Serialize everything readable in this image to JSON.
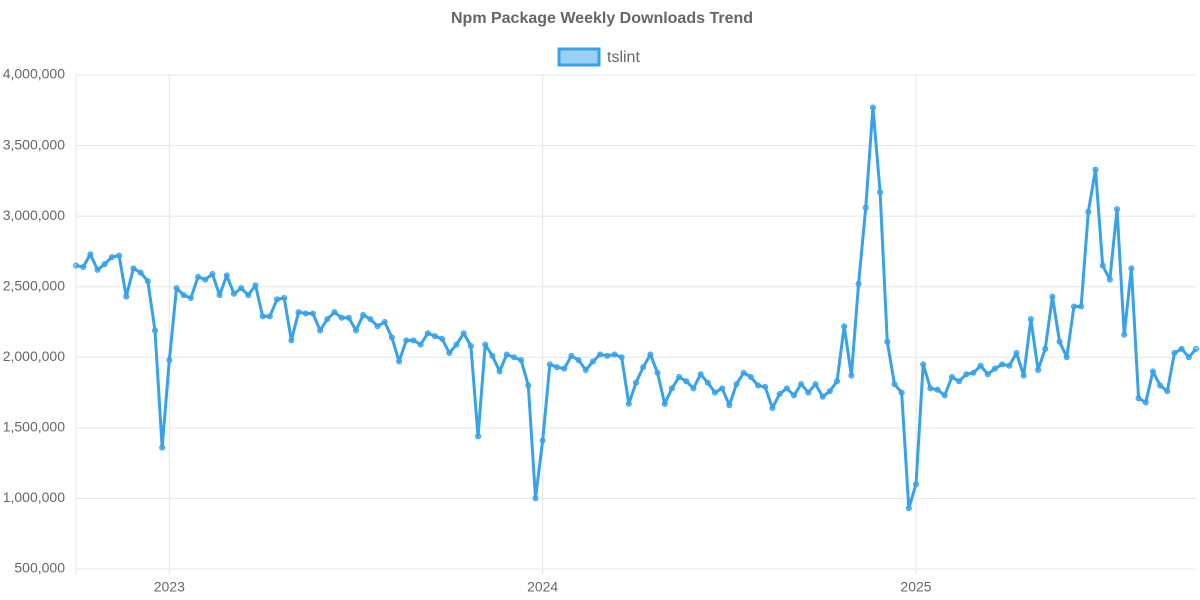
{
  "chart_data": {
    "type": "line",
    "title": "Npm Package Weekly Downloads Trend",
    "categories": [
      null,
      null,
      null,
      null,
      null,
      null,
      null,
      null,
      null,
      null,
      null,
      null,
      null,
      "2023",
      null,
      null,
      null,
      null,
      null,
      null,
      null,
      null,
      null,
      null,
      null,
      null,
      null,
      null,
      null,
      null,
      null,
      null,
      null,
      null,
      null,
      null,
      null,
      null,
      null,
      null,
      null,
      null,
      null,
      null,
      null,
      null,
      null,
      null,
      null,
      null,
      null,
      null,
      null,
      null,
      null,
      null,
      null,
      null,
      null,
      null,
      null,
      null,
      null,
      null,
      null,
      "2024",
      null,
      null,
      null,
      null,
      null,
      null,
      null,
      null,
      null,
      null,
      null,
      null,
      null,
      null,
      null,
      null,
      null,
      null,
      null,
      null,
      null,
      null,
      null,
      null,
      null,
      null,
      null,
      null,
      null,
      null,
      null,
      null,
      null,
      null,
      null,
      null,
      null,
      null,
      null,
      null,
      null,
      null,
      null,
      null,
      null,
      null,
      null,
      null,
      null,
      null,
      null,
      "2025",
      null,
      null,
      null,
      null,
      null,
      null,
      null,
      null,
      null,
      null,
      null,
      null,
      null,
      null,
      null,
      null,
      null,
      null,
      null,
      null,
      null,
      null,
      null,
      null,
      null,
      null,
      null,
      null,
      null,
      null,
      null,
      null,
      null,
      null,
      null,
      null,
      null,
      null,
      null
    ],
    "series": [
      {
        "name": "tslint",
        "color": "#36a2eb",
        "values": [
          2650000,
          2640000,
          2730000,
          2620000,
          2660000,
          2710000,
          2720000,
          2430000,
          2630000,
          2600000,
          2540000,
          2190000,
          1360000,
          1980000,
          2490000,
          2440000,
          2420000,
          2570000,
          2550000,
          2590000,
          2440000,
          2580000,
          2450000,
          2490000,
          2440000,
          2510000,
          2290000,
          2290000,
          2410000,
          2420000,
          2120000,
          2320000,
          2310000,
          2310000,
          2190000,
          2270000,
          2320000,
          2280000,
          2280000,
          2190000,
          2300000,
          2270000,
          2220000,
          2250000,
          2140000,
          1970000,
          2120000,
          2120000,
          2090000,
          2170000,
          2150000,
          2130000,
          2030000,
          2090000,
          2170000,
          2080000,
          1440000,
          2090000,
          2010000,
          1900000,
          2020000,
          2000000,
          1980000,
          1800000,
          1000000,
          1410000,
          1950000,
          1930000,
          1920000,
          2010000,
          1980000,
          1910000,
          1970000,
          2020000,
          2010000,
          2020000,
          2000000,
          1670000,
          1820000,
          1930000,
          2020000,
          1890000,
          1670000,
          1780000,
          1860000,
          1830000,
          1780000,
          1880000,
          1820000,
          1750000,
          1780000,
          1660000,
          1810000,
          1890000,
          1860000,
          1800000,
          1790000,
          1640000,
          1740000,
          1780000,
          1730000,
          1810000,
          1750000,
          1810000,
          1720000,
          1760000,
          1830000,
          2220000,
          1870000,
          2520000,
          3060000,
          3770000,
          3170000,
          2110000,
          1810000,
          1750000,
          930000,
          1100000,
          1950000,
          1780000,
          1770000,
          1730000,
          1860000,
          1830000,
          1880000,
          1890000,
          1940000,
          1880000,
          1920000,
          1950000,
          1940000,
          2030000,
          1870000,
          2270000,
          1910000,
          2060000,
          2430000,
          2110000,
          2000000,
          2360000,
          2360000,
          3030000,
          3330000,
          2650000,
          2550000,
          3050000,
          2160000,
          2630000,
          1710000,
          1680000,
          1900000,
          1800000,
          1760000,
          2030000,
          2060000,
          2000000,
          2060000
        ]
      }
    ],
    "ylim": [
      500000,
      4000000
    ],
    "yticks": [
      {
        "value": 500000,
        "label": "500,000"
      },
      {
        "value": 1000000,
        "label": "1,000,000"
      },
      {
        "value": 1500000,
        "label": "1,500,000"
      },
      {
        "value": 2000000,
        "label": "2,000,000"
      },
      {
        "value": 2500000,
        "label": "2,500,000"
      },
      {
        "value": 3000000,
        "label": "3,000,000"
      },
      {
        "value": 3500000,
        "label": "3,500,000"
      },
      {
        "value": 4000000,
        "label": "4,000,000"
      }
    ],
    "grid": true,
    "legend": "top"
  }
}
